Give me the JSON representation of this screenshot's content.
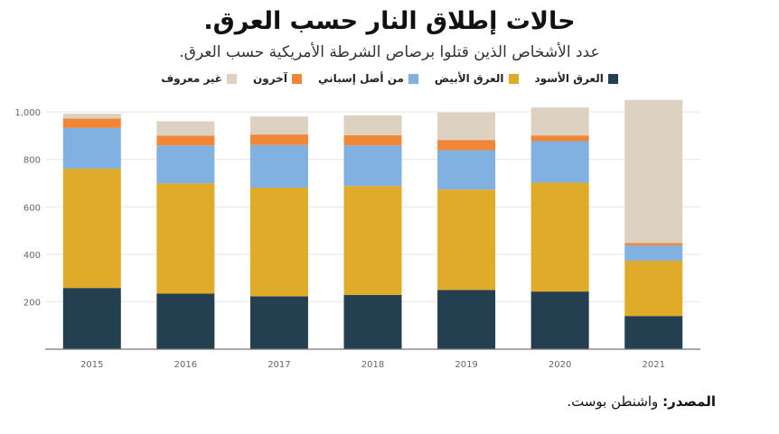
{
  "title": "حالات إطلاق النار حسب العرق.",
  "subtitle": "عدد الأشخاص الذين قتلوا برصاص الشرطة الأمريكية حسب العرق.",
  "source": {
    "label": "المصدر:",
    "text": " واشنطن بوست."
  },
  "colors": {
    "black": "#243f4f",
    "white": "#e1ab2a",
    "hispanic": "#80b1e0",
    "other": "#f08636",
    "unknown": "#ddd1c2",
    "grid": "#e6e6e6",
    "axis": "#777777",
    "tick": "#666666"
  },
  "chart_data": {
    "type": "bar",
    "stacked": true,
    "categories": [
      "2015",
      "2016",
      "2017",
      "2018",
      "2019",
      "2020",
      "2021"
    ],
    "ylim": [
      0,
      1050
    ],
    "yticks": [
      200,
      400,
      600,
      800,
      1000
    ],
    "ytick_labels": [
      "200",
      "400",
      "600",
      "800",
      "1,000"
    ],
    "legend_position": "top-center",
    "grid": true,
    "series": [
      {
        "key": "black",
        "name": "العرق الأسود",
        "values": [
          258,
          234,
          223,
          229,
          250,
          243,
          140
        ]
      },
      {
        "key": "white",
        "name": "العرق الأبيض",
        "values": [
          503,
          465,
          458,
          459,
          423,
          459,
          233
        ]
      },
      {
        "key": "hispanic",
        "name": "من أصل إسباني",
        "values": [
          172,
          160,
          180,
          171,
          166,
          175,
          65
        ]
      },
      {
        "key": "other",
        "name": "آخرون",
        "values": [
          40,
          41,
          44,
          43,
          43,
          24,
          10
        ]
      },
      {
        "key": "unknown",
        "name": "غير معروف",
        "values": [
          20,
          61,
          76,
          84,
          116,
          118,
          603
        ]
      }
    ]
  }
}
